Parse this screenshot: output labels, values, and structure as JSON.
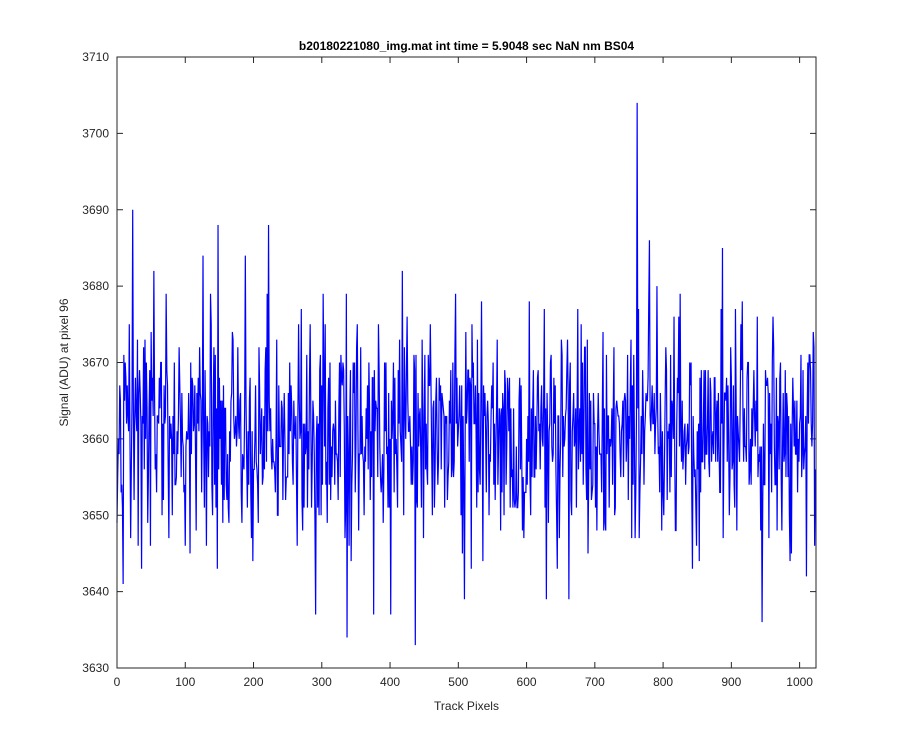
{
  "chart_data": {
    "type": "line",
    "title": "b20180221080_img.mat int time = 5.9048 sec  NaN nm BS04",
    "xlabel": "Track Pixels",
    "ylabel": "Signal (ADU) at pixel 96",
    "xlim": [
      0,
      1024
    ],
    "ylim": [
      3630,
      3710
    ],
    "xticks": [
      0,
      100,
      200,
      300,
      400,
      500,
      600,
      700,
      800,
      900,
      1000
    ],
    "yticks": [
      3630,
      3640,
      3650,
      3660,
      3670,
      3680,
      3690,
      3700,
      3710
    ],
    "grid": false,
    "line_color": "#0000ff",
    "series": [
      {
        "n_points": 1024,
        "mean": 3661,
        "std": 7,
        "noise_seed": 20180221,
        "noise_range": [
          3641,
          3681
        ],
        "keypoints": [
          {
            "x": 1,
            "y": 3655
          },
          {
            "x": 4,
            "y": 3667
          },
          {
            "x": 8,
            "y": 3651
          },
          {
            "x": 12,
            "y": 3670
          },
          {
            "x": 18,
            "y": 3675
          },
          {
            "x": 20,
            "y": 3647
          },
          {
            "x": 23,
            "y": 3690
          },
          {
            "x": 31,
            "y": 3646
          },
          {
            "x": 54,
            "y": 3682
          },
          {
            "x": 72,
            "y": 3679
          },
          {
            "x": 126,
            "y": 3684
          },
          {
            "x": 131,
            "y": 3646
          },
          {
            "x": 148,
            "y": 3688
          },
          {
            "x": 188,
            "y": 3684
          },
          {
            "x": 222,
            "y": 3688
          },
          {
            "x": 264,
            "y": 3646
          },
          {
            "x": 270,
            "y": 3677
          },
          {
            "x": 291,
            "y": 3637
          },
          {
            "x": 337,
            "y": 3634
          },
          {
            "x": 376,
            "y": 3637
          },
          {
            "x": 401,
            "y": 3637
          },
          {
            "x": 418,
            "y": 3682
          },
          {
            "x": 437,
            "y": 3633
          },
          {
            "x": 496,
            "y": 3679
          },
          {
            "x": 509,
            "y": 3639
          },
          {
            "x": 629,
            "y": 3639
          },
          {
            "x": 662,
            "y": 3639
          },
          {
            "x": 762,
            "y": 3704
          },
          {
            "x": 780,
            "y": 3686
          },
          {
            "x": 843,
            "y": 3643
          },
          {
            "x": 887,
            "y": 3685
          },
          {
            "x": 945,
            "y": 3636
          },
          {
            "x": 1010,
            "y": 3642
          },
          {
            "x": 1020,
            "y": 3674
          }
        ]
      }
    ]
  }
}
